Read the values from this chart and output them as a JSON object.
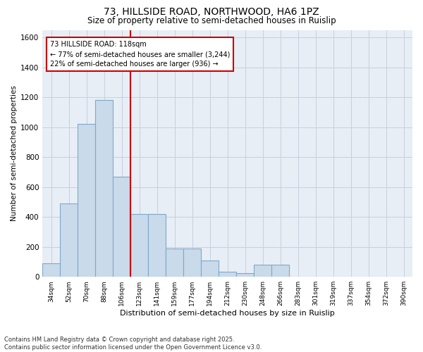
{
  "title_line1": "73, HILLSIDE ROAD, NORTHWOOD, HA6 1PZ",
  "title_line2": "Size of property relative to semi-detached houses in Ruislip",
  "xlabel": "Distribution of semi-detached houses by size in Ruislip",
  "ylabel": "Number of semi-detached properties",
  "categories": [
    "34sqm",
    "52sqm",
    "70sqm",
    "88sqm",
    "106sqm",
    "123sqm",
    "141sqm",
    "159sqm",
    "177sqm",
    "194sqm",
    "212sqm",
    "230sqm",
    "248sqm",
    "266sqm",
    "283sqm",
    "301sqm",
    "319sqm",
    "337sqm",
    "354sqm",
    "372sqm",
    "390sqm"
  ],
  "values": [
    90,
    490,
    1020,
    1180,
    670,
    420,
    420,
    190,
    190,
    110,
    35,
    25,
    80,
    80,
    0,
    0,
    0,
    0,
    0,
    0,
    0
  ],
  "bar_color": "#c9daea",
  "bar_edgecolor": "#7fa8c8",
  "vline_color": "#cc0000",
  "vline_x_index": 4.5,
  "annotation_title": "73 HILLSIDE ROAD: 118sqm",
  "annotation_line1": "← 77% of semi-detached houses are smaller (3,244)",
  "annotation_line2": "22% of semi-detached houses are larger (936) →",
  "annotation_box_edgecolor": "#cc0000",
  "ylim": [
    0,
    1650
  ],
  "yticks": [
    0,
    200,
    400,
    600,
    800,
    1000,
    1200,
    1400,
    1600
  ],
  "grid_color": "#c8d0dc",
  "background_color": "#e8eef6",
  "footnote_line1": "Contains HM Land Registry data © Crown copyright and database right 2025.",
  "footnote_line2": "Contains public sector information licensed under the Open Government Licence v3.0."
}
